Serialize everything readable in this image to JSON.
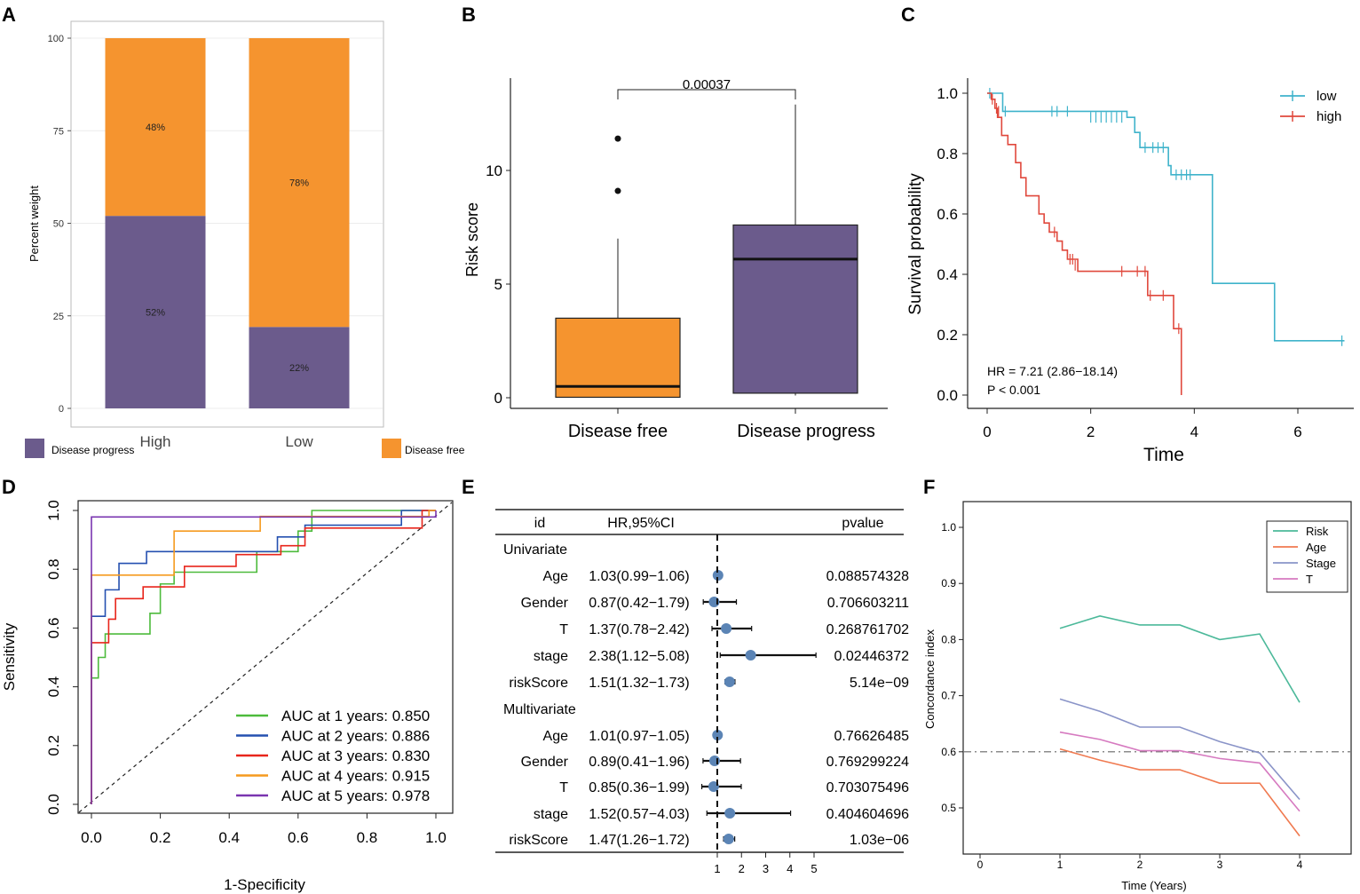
{
  "chart_data": [
    {
      "panel": "A",
      "type": "bar",
      "stacked": true,
      "categories": [
        "High",
        "Low"
      ],
      "series": [
        {
          "name": "Disease progress",
          "values": [
            52,
            22
          ],
          "color": "#6b5b8c"
        },
        {
          "name": "Disease free",
          "values": [
            48,
            78
          ],
          "color": "#f5942f"
        }
      ],
      "segment_labels": {
        "High": [
          "52%",
          "48%"
        ],
        "Low": [
          "22%",
          "78%"
        ]
      },
      "ylabel": "Percent weight",
      "ylim": [
        0,
        100
      ],
      "yticks": [
        "0",
        "25",
        "50",
        "75",
        "100"
      ],
      "legend": [
        "Disease progress",
        "Disease free"
      ],
      "legend_placement": "bottom"
    },
    {
      "panel": "B",
      "type": "box",
      "categories": [
        "Disease free",
        "Disease progress"
      ],
      "boxes": [
        {
          "group": "Disease free",
          "whisker_low": 0,
          "q1": 0.02,
          "median": 0.5,
          "q3": 3.5,
          "whisker_high": 7.0,
          "outliers": [
            9.1,
            11.4
          ],
          "color": "#f5942f"
        },
        {
          "group": "Disease progress",
          "whisker_low": 0.1,
          "q1": 0.2,
          "median": 6.1,
          "q3": 7.6,
          "whisker_high": 12.9,
          "outliers": [],
          "color": "#6b5b8c"
        }
      ],
      "ylabel": "Risk score",
      "ylim": [
        -0.5,
        14
      ],
      "yticks": [
        "0",
        "5",
        "10"
      ],
      "pvalue": "0.00037"
    },
    {
      "panel": "C",
      "type": "line",
      "subtype": "kaplan-meier",
      "xlabel": "Time",
      "ylabel": "Survival probability",
      "xlim": [
        0,
        7
      ],
      "ylim": [
        0,
        1
      ],
      "xticks": [
        "0",
        "2",
        "4",
        "6"
      ],
      "yticks": [
        "0.0",
        "0.2",
        "0.4",
        "0.6",
        "0.8",
        "1.0"
      ],
      "series": [
        {
          "name": "low",
          "color": "#3fb3cb",
          "steps": [
            [
              0,
              1.0
            ],
            [
              0.3,
              0.94
            ],
            [
              2.7,
              0.92
            ],
            [
              2.85,
              0.87
            ],
            [
              2.95,
              0.82
            ],
            [
              3.5,
              0.76
            ],
            [
              3.55,
              0.73
            ],
            [
              4.2,
              0.73
            ],
            [
              4.35,
              0.55
            ],
            [
              4.35,
              0.37
            ],
            [
              5.5,
              0.37
            ],
            [
              5.55,
              0.18
            ],
            [
              6.9,
              0.18
            ]
          ],
          "censor": [
            [
              0.05,
              1.0
            ],
            [
              0.35,
              0.94
            ],
            [
              1.25,
              0.94
            ],
            [
              1.35,
              0.94
            ],
            [
              1.55,
              0.94
            ],
            [
              2.0,
              0.92
            ],
            [
              2.1,
              0.92
            ],
            [
              2.2,
              0.92
            ],
            [
              2.3,
              0.92
            ],
            [
              2.4,
              0.92
            ],
            [
              2.5,
              0.92
            ],
            [
              2.6,
              0.92
            ],
            [
              3.05,
              0.82
            ],
            [
              3.2,
              0.82
            ],
            [
              3.3,
              0.82
            ],
            [
              3.4,
              0.82
            ],
            [
              3.65,
              0.73
            ],
            [
              3.75,
              0.73
            ],
            [
              3.85,
              0.73
            ],
            [
              3.92,
              0.73
            ],
            [
              6.85,
              0.18
            ]
          ]
        },
        {
          "name": "high",
          "color": "#e0483c",
          "steps": [
            [
              0,
              1.0
            ],
            [
              0.08,
              0.98
            ],
            [
              0.15,
              0.95
            ],
            [
              0.2,
              0.92
            ],
            [
              0.28,
              0.86
            ],
            [
              0.4,
              0.83
            ],
            [
              0.55,
              0.77
            ],
            [
              0.65,
              0.72
            ],
            [
              0.75,
              0.66
            ],
            [
              1.0,
              0.6
            ],
            [
              1.1,
              0.57
            ],
            [
              1.2,
              0.54
            ],
            [
              1.35,
              0.51
            ],
            [
              1.45,
              0.48
            ],
            [
              1.55,
              0.45
            ],
            [
              1.75,
              0.41
            ],
            [
              3.1,
              0.41
            ],
            [
              3.1,
              0.33
            ],
            [
              3.6,
              0.33
            ],
            [
              3.6,
              0.22
            ],
            [
              3.75,
              0.22
            ],
            [
              3.75,
              0.0
            ]
          ],
          "censor": [
            [
              0.1,
              0.98
            ],
            [
              0.18,
              0.95
            ],
            [
              0.22,
              0.94
            ],
            [
              1.3,
              0.54
            ],
            [
              1.6,
              0.45
            ],
            [
              1.65,
              0.45
            ],
            [
              1.7,
              0.43
            ],
            [
              2.6,
              0.41
            ],
            [
              2.9,
              0.41
            ],
            [
              3.05,
              0.41
            ],
            [
              3.15,
              0.33
            ],
            [
              3.4,
              0.33
            ],
            [
              3.7,
              0.22
            ]
          ]
        }
      ],
      "legend": [
        "low",
        "high"
      ],
      "legend_placement": "top-right",
      "annotations": [
        "HR = 7.21 (2.86−18.14)",
        "P < 0.001"
      ]
    },
    {
      "panel": "D",
      "type": "line",
      "subtype": "roc",
      "xlabel": "1-Specificity",
      "ylabel": "Sensitivity",
      "xlim": [
        0,
        1
      ],
      "ylim": [
        0,
        1
      ],
      "xticks": [
        "0.0",
        "0.2",
        "0.4",
        "0.6",
        "0.8",
        "1.0"
      ],
      "yticks": [
        "0.0",
        "0.2",
        "0.4",
        "0.6",
        "0.8",
        "1.0"
      ],
      "series": [
        {
          "name": "AUC at 1 years: 0.850",
          "color": "#4dbb3c",
          "points": [
            [
              0,
              0
            ],
            [
              0,
              0.43
            ],
            [
              0.02,
              0.43
            ],
            [
              0.02,
              0.5
            ],
            [
              0.04,
              0.5
            ],
            [
              0.04,
              0.58
            ],
            [
              0.17,
              0.58
            ],
            [
              0.17,
              0.65
            ],
            [
              0.2,
              0.65
            ],
            [
              0.2,
              0.75
            ],
            [
              0.24,
              0.75
            ],
            [
              0.24,
              0.79
            ],
            [
              0.48,
              0.79
            ],
            [
              0.48,
              0.86
            ],
            [
              0.6,
              0.86
            ],
            [
              0.6,
              0.93
            ],
            [
              0.64,
              0.93
            ],
            [
              0.64,
              1.0
            ],
            [
              1.0,
              1.0
            ]
          ]
        },
        {
          "name": "AUC at 2 years: 0.886",
          "color": "#2550b0",
          "points": [
            [
              0,
              0
            ],
            [
              0,
              0.64
            ],
            [
              0.04,
              0.64
            ],
            [
              0.04,
              0.73
            ],
            [
              0.08,
              0.73
            ],
            [
              0.08,
              0.82
            ],
            [
              0.16,
              0.82
            ],
            [
              0.16,
              0.86
            ],
            [
              0.54,
              0.86
            ],
            [
              0.54,
              0.91
            ],
            [
              0.62,
              0.91
            ],
            [
              0.62,
              0.95
            ],
            [
              0.9,
              0.95
            ],
            [
              0.9,
              1.0
            ],
            [
              1.0,
              1.0
            ]
          ]
        },
        {
          "name": "AUC at 3 years: 0.830",
          "color": "#e8251b",
          "points": [
            [
              0,
              0
            ],
            [
              0,
              0.55
            ],
            [
              0.05,
              0.55
            ],
            [
              0.05,
              0.63
            ],
            [
              0.07,
              0.63
            ],
            [
              0.07,
              0.7
            ],
            [
              0.15,
              0.7
            ],
            [
              0.15,
              0.74
            ],
            [
              0.27,
              0.74
            ],
            [
              0.27,
              0.81
            ],
            [
              0.42,
              0.81
            ],
            [
              0.42,
              0.85
            ],
            [
              0.55,
              0.85
            ],
            [
              0.55,
              0.88
            ],
            [
              0.62,
              0.88
            ],
            [
              0.62,
              0.94
            ],
            [
              0.96,
              0.94
            ],
            [
              0.96,
              1.0
            ],
            [
              1.0,
              1.0
            ]
          ]
        },
        {
          "name": "AUC at 4 years: 0.915",
          "color": "#f59a1f",
          "points": [
            [
              0,
              0
            ],
            [
              0,
              0.78
            ],
            [
              0.24,
              0.78
            ],
            [
              0.24,
              0.93
            ],
            [
              0.49,
              0.93
            ],
            [
              0.49,
              0.98
            ],
            [
              0.98,
              0.98
            ],
            [
              0.98,
              1.0
            ],
            [
              1.0,
              1.0
            ]
          ]
        },
        {
          "name": "AUC at 5 years: 0.978",
          "color": "#7a35b0",
          "points": [
            [
              0,
              0
            ],
            [
              0,
              0.978
            ],
            [
              1.0,
              0.978
            ],
            [
              1.0,
              1.0
            ]
          ]
        }
      ],
      "diagonal": true,
      "legend_placement": "bottom-right"
    },
    {
      "panel": "E",
      "type": "forest",
      "header": {
        "id": "id",
        "hr": "HR,95%CI",
        "pvalue": "pvalue"
      },
      "xticks": [
        "1",
        "2",
        "3",
        "4",
        "5"
      ],
      "reference": 1,
      "sections": [
        {
          "title": "Univariate",
          "rows": [
            {
              "id": "Age",
              "hr_text": "1.03(0.99−1.06)",
              "pvalue": "0.088574328",
              "hr": 1.03,
              "lo": 0.99,
              "hi": 1.06
            },
            {
              "id": "Gender",
              "hr_text": "0.87(0.42−1.79)",
              "pvalue": "0.706603211",
              "hr": 0.87,
              "lo": 0.42,
              "hi": 1.79
            },
            {
              "id": "T",
              "hr_text": "1.37(0.78−2.42)",
              "pvalue": "0.268761702",
              "hr": 1.37,
              "lo": 0.78,
              "hi": 2.42
            },
            {
              "id": "stage",
              "hr_text": "2.38(1.12−5.08)",
              "pvalue": "0.02446372",
              "hr": 2.38,
              "lo": 1.12,
              "hi": 5.08
            },
            {
              "id": "riskScore",
              "hr_text": "1.51(1.32−1.73)",
              "pvalue": "5.14e−09",
              "hr": 1.51,
              "lo": 1.32,
              "hi": 1.73
            }
          ]
        },
        {
          "title": "Multivariate",
          "rows": [
            {
              "id": "Age",
              "hr_text": "1.01(0.97−1.05)",
              "pvalue": "0.76626485",
              "hr": 1.01,
              "lo": 0.97,
              "hi": 1.05
            },
            {
              "id": "Gender",
              "hr_text": "0.89(0.41−1.96)",
              "pvalue": "0.769299224",
              "hr": 0.89,
              "lo": 0.41,
              "hi": 1.96
            },
            {
              "id": "T",
              "hr_text": "0.85(0.36−1.99)",
              "pvalue": "0.703075496",
              "hr": 0.85,
              "lo": 0.36,
              "hi": 1.99
            },
            {
              "id": "stage",
              "hr_text": "1.52(0.57−4.03)",
              "pvalue": "0.404604696",
              "hr": 1.52,
              "lo": 0.57,
              "hi": 4.03
            },
            {
              "id": "riskScore",
              "hr_text": "1.47(1.26−1.72)",
              "pvalue": "1.03e−06",
              "hr": 1.47,
              "lo": 1.26,
              "hi": 1.72
            }
          ]
        }
      ]
    },
    {
      "panel": "F",
      "type": "line",
      "xlabel": "Time (Years)",
      "ylabel": "Concordance index",
      "xlim": [
        -0.3,
        4.5
      ],
      "ylim": [
        0.44,
        1.04
      ],
      "xticks": [
        "0",
        "1",
        "2",
        "3",
        "4"
      ],
      "yticks": [
        "0.5",
        "0.6",
        "0.7",
        "0.8",
        "0.9",
        "1.0"
      ],
      "reference_line": 0.6,
      "x": [
        1,
        1.5,
        2,
        2.5,
        3,
        3.5,
        4
      ],
      "series": [
        {
          "name": "Risk",
          "color": "#4cb99a",
          "values": [
            0.82,
            0.842,
            0.826,
            0.826,
            0.8,
            0.81,
            0.688
          ]
        },
        {
          "name": "Age",
          "color": "#f07a50",
          "values": [
            0.605,
            0.585,
            0.568,
            0.568,
            0.544,
            0.544,
            0.45
          ]
        },
        {
          "name": "Stage",
          "color": "#8a94c8",
          "values": [
            0.694,
            0.672,
            0.644,
            0.644,
            0.618,
            0.598,
            0.515
          ]
        },
        {
          "name": "T",
          "color": "#d67ac0",
          "values": [
            0.635,
            0.622,
            0.602,
            0.602,
            0.588,
            0.58,
            0.494
          ]
        }
      ],
      "legend_placement": "top-right"
    }
  ],
  "panel_labels": [
    "A",
    "B",
    "C",
    "D",
    "E",
    "F"
  ]
}
